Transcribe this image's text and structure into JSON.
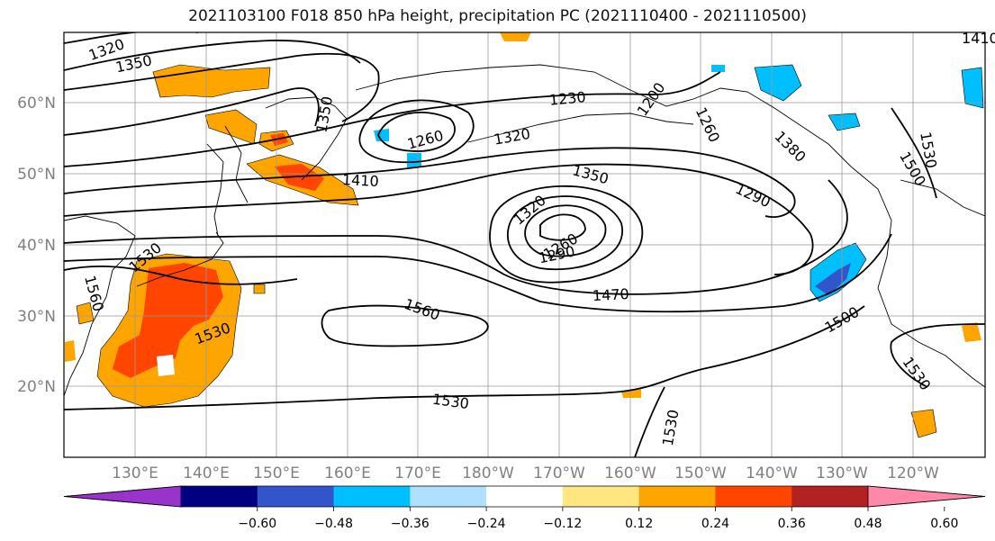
{
  "title": "2021103100 F018 850 hPa height, precipitation PC (2021110400 - 2021110500)",
  "map": {
    "lon_labels": [
      "130°E",
      "140°E",
      "150°E",
      "160°E",
      "170°E",
      "180°W",
      "170°W",
      "160°W",
      "150°W",
      "140°W",
      "130°W",
      "120°W"
    ],
    "lat_labels": [
      "60°N",
      "50°N",
      "40°N",
      "30°N",
      "20°N"
    ]
  },
  "contour_labels": [
    "1320",
    "1350",
    "1350",
    "1260",
    "1320",
    "1230",
    "1200",
    "1260",
    "1380",
    "1530",
    "1500",
    "1410",
    "1350",
    "1320",
    "1290",
    "1260",
    "1290",
    "1470",
    "1560",
    "1530",
    "1500",
    "1530",
    "1530",
    "1530",
    "1530",
    "1560",
    "1410"
  ],
  "colorbar": {
    "colors": [
      "#9933cc",
      "#000080",
      "#3355cc",
      "#00bfff",
      "#b0e0ff",
      "#ffffff",
      "#ffe680",
      "#ffa500",
      "#ff4500",
      "#b22222",
      "#ff88aa"
    ],
    "tick_labels": [
      "−0.60",
      "−0.48",
      "−0.36",
      "−0.24",
      "−0.12",
      "0.12",
      "0.24",
      "0.36",
      "0.48",
      "0.60"
    ]
  },
  "colors": {
    "contour": "#000000",
    "grid": "#999999",
    "axis_label": "#808080"
  }
}
